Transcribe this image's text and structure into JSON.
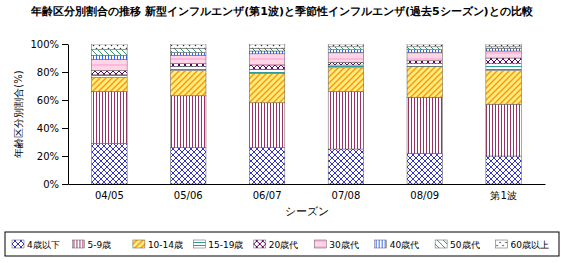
{
  "chart_data": {
    "type": "bar",
    "title": "年齢区分別割合の推移 新型インフルエンザ(第1波)と季節性インフルエンザ(過去5シーズン)との比較",
    "x_label": "シーズン",
    "y_label": "年齢区分別割合(%)",
    "categories": [
      "04/05",
      "05/06",
      "06/07",
      "07/08",
      "08/09",
      "第1波"
    ],
    "stacked": true,
    "grid": false,
    "legend": "bottom",
    "ylim": [
      0,
      100
    ],
    "yticks": [
      {
        "value": 0,
        "label": "0%"
      },
      {
        "value": 20,
        "label": "20%"
      },
      {
        "value": 40,
        "label": "40%"
      },
      {
        "value": 60,
        "label": "60%"
      },
      {
        "value": 80,
        "label": "80%"
      },
      {
        "value": 100,
        "label": "100%"
      }
    ],
    "series": [
      {
        "name": "4歳以下",
        "color": "#3333cc",
        "values": [
          29,
          26,
          26,
          25,
          22,
          20
        ]
      },
      {
        "name": "5-9歳",
        "color": "#993366",
        "values": [
          37,
          37,
          32,
          41,
          40,
          37
        ]
      },
      {
        "name": "10-14歳",
        "color": "#ff9900",
        "values": [
          10,
          18,
          21,
          17,
          22,
          24
        ]
      },
      {
        "name": "15-19歳",
        "color": "#339999",
        "values": [
          2,
          3,
          3,
          2,
          2,
          5
        ]
      },
      {
        "name": "20歳代",
        "color": "#660066",
        "values": [
          3,
          2,
          3,
          2,
          2,
          4
        ]
      },
      {
        "name": "30歳代",
        "color": "#ff99cc",
        "values": [
          8,
          6,
          8,
          7,
          6,
          5
        ]
      },
      {
        "name": "40歳代",
        "color": "#3366ff",
        "values": [
          3,
          2,
          2,
          2,
          2,
          2
        ]
      },
      {
        "name": "50歳代",
        "color": "#339966",
        "values": [
          4,
          3,
          2,
          2,
          2,
          1
        ]
      },
      {
        "name": "60歳以上",
        "color": "#333333",
        "values": [
          4,
          3,
          3,
          2,
          2,
          2
        ]
      }
    ]
  }
}
